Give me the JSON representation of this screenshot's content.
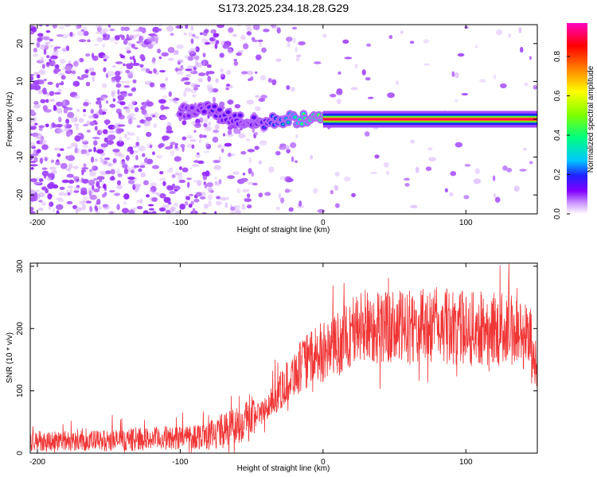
{
  "title": "S173.2025.234.18.28.G29",
  "chart_data": [
    {
      "type": "heatmap",
      "xlabel": "Height of straight line (km)",
      "ylabel": "Frequency (Hz)",
      "xlim": [
        -205,
        150
      ],
      "ylim": [
        -25,
        25
      ],
      "xticks": [
        -200,
        -100,
        0,
        100
      ],
      "yticks": [
        -20,
        -10,
        0,
        10,
        20
      ],
      "colorbar": {
        "label": "Normalized spectral amplitude",
        "ticks": [
          0.0,
          0.2,
          0.4,
          0.6,
          0.8
        ],
        "range": [
          0,
          0.97
        ],
        "colormap": [
          "#ffffff",
          "#c890ff",
          "#8000ff",
          "#2020ff",
          "#00c8ff",
          "#00ff80",
          "#80ff00",
          "#ffff00",
          "#ff8000",
          "#ff0000",
          "#ff00c0"
        ]
      },
      "ridge": {
        "x": [
          -100,
          -90,
          -80,
          -70,
          -60,
          -50,
          -40,
          -30,
          -20,
          -10,
          0,
          10,
          50,
          100,
          150
        ],
        "freq_hz": [
          2,
          2,
          3,
          1,
          0,
          -1,
          -1,
          0,
          0,
          0,
          0,
          0,
          0,
          0,
          0
        ],
        "peak_amplitude": [
          0.25,
          0.25,
          0.3,
          0.3,
          0.3,
          0.3,
          0.35,
          0.45,
          0.55,
          0.65,
          0.75,
          0.9,
          0.95,
          0.95,
          0.95
        ]
      }
    },
    {
      "type": "line",
      "xlabel": "Height of straight line (km)",
      "ylabel": "SNR (10 * v/v)",
      "xlim": [
        -205,
        150
      ],
      "ylim": [
        0,
        305
      ],
      "xticks": [
        -200,
        -100,
        0,
        100
      ],
      "yticks": [
        0,
        100,
        200,
        300
      ],
      "color": "#f03535",
      "envelope": {
        "x": [
          -205,
          -150,
          -100,
          -80,
          -60,
          -40,
          -30,
          -20,
          -10,
          0,
          10,
          20,
          30,
          50,
          80,
          100,
          130,
          145,
          150
        ],
        "mean": [
          20,
          20,
          25,
          30,
          45,
          70,
          100,
          130,
          150,
          160,
          175,
          195,
          205,
          200,
          205,
          200,
          200,
          185,
          130
        ]
      }
    }
  ]
}
